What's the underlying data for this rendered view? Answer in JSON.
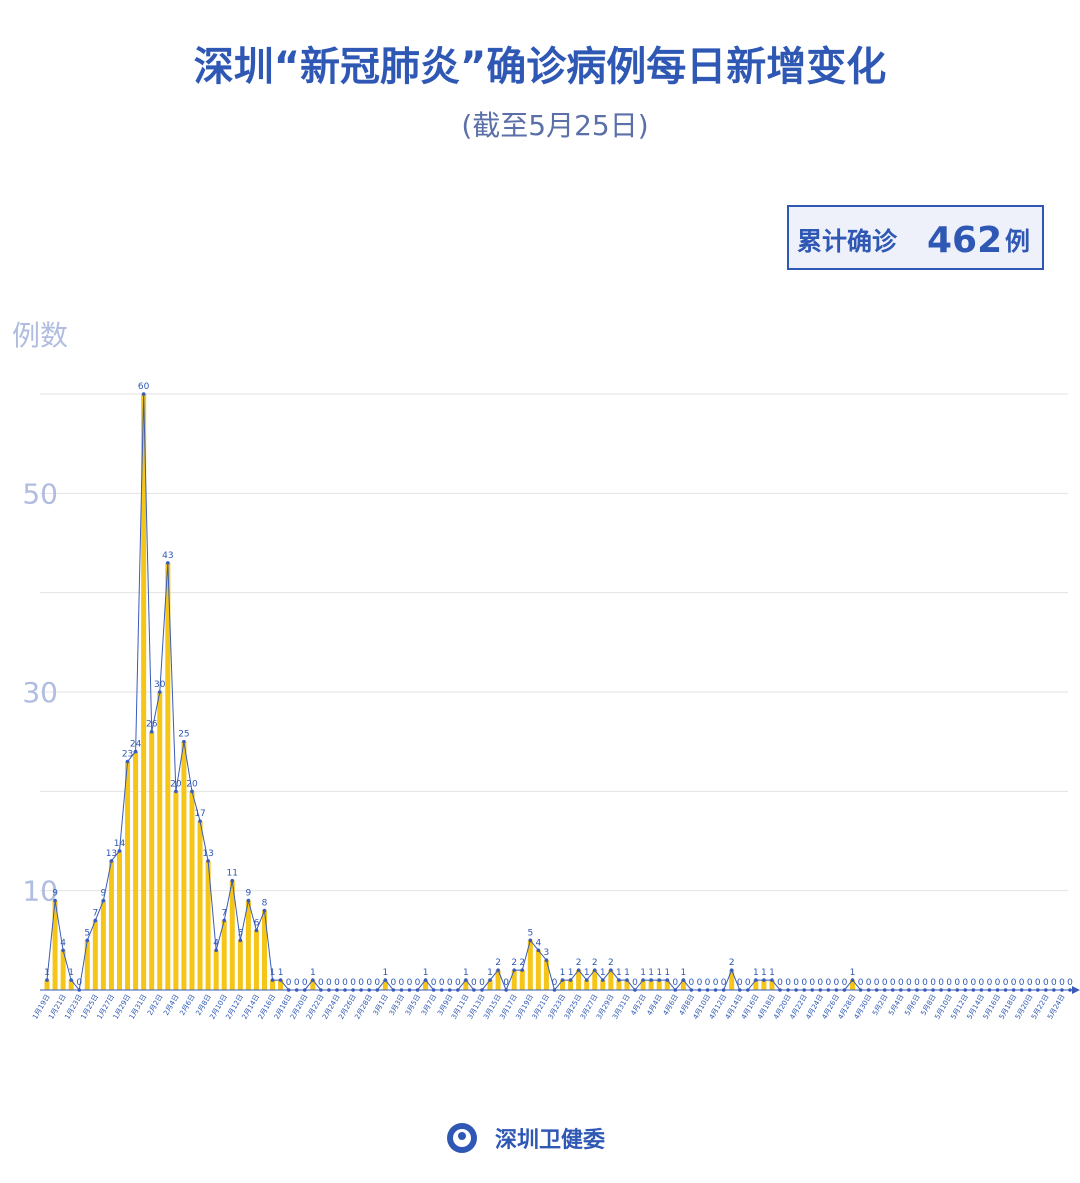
{
  "chart_data": {
    "type": "bar-line",
    "title": "深圳“新冠肺炎”确诊病例每日新增变化",
    "subtitle": "(截至5月25日)",
    "total": {
      "label": "累计确诊",
      "value": "462",
      "unit": "例"
    },
    "y_label": "例数",
    "source": "深圳卫健委",
    "categories": [
      "1月19日",
      null,
      "1月21日",
      null,
      "1月23日",
      null,
      "1月25日",
      null,
      "1月27日",
      null,
      "1月29日",
      null,
      "1月31日",
      null,
      "2月2日",
      null,
      "2月4日",
      null,
      "2月6日",
      null,
      "2月8日",
      null,
      "2月10日",
      null,
      "2月12日",
      null,
      "2月14日",
      null,
      "2月16日",
      null,
      "2月18日",
      null,
      "2月20日",
      null,
      "2月22日",
      null,
      "2月24日",
      null,
      "2月26日",
      null,
      "2月28日",
      null,
      "3月1日",
      null,
      "3月3日",
      null,
      "3月5日",
      null,
      "3月7日",
      null,
      "3月9日",
      null,
      "3月11日",
      null,
      "3月13日",
      null,
      "3月15日",
      null,
      "3月17日",
      null,
      "3月19日",
      null,
      "3月21日",
      null,
      "3月23日",
      null,
      "3月25日",
      null,
      "3月27日",
      null,
      "3月29日",
      null,
      "3月31日",
      null,
      "4月2日",
      null,
      "4月4日",
      null,
      "4月6日",
      null,
      "4月8日",
      null,
      "4月10日",
      null,
      "4月12日",
      null,
      "4月14日",
      null,
      "4月16日",
      null,
      "4月18日",
      null,
      "4月20日",
      null,
      "4月22日",
      null,
      "4月24日",
      null,
      "4月26日",
      null,
      "4月28日",
      null,
      "4月30日",
      null,
      "5月2日",
      null,
      "5月4日",
      null,
      "5月6日",
      null,
      "5月8日",
      null,
      "5月10日",
      null,
      "5月12日",
      null,
      "5月14日",
      null,
      "5月16日",
      null,
      "5月18日",
      null,
      "5月20日",
      null,
      "5月22日",
      null,
      "5月24日",
      null
    ],
    "values": [
      1,
      9,
      4,
      1,
      0,
      5,
      7,
      9,
      13,
      14,
      23,
      24,
      60,
      26,
      30,
      43,
      20,
      25,
      20,
      17,
      13,
      4,
      7,
      11,
      5,
      9,
      6,
      8,
      1,
      1,
      0,
      0,
      0,
      1,
      0,
      0,
      0,
      0,
      0,
      0,
      0,
      0,
      1,
      0,
      0,
      0,
      0,
      1,
      0,
      0,
      0,
      0,
      1,
      0,
      0,
      1,
      2,
      0,
      2,
      2,
      5,
      4,
      3,
      0,
      1,
      1,
      2,
      1,
      2,
      1,
      2,
      1,
      1,
      0,
      1,
      1,
      1,
      1,
      0,
      1,
      0,
      0,
      0,
      0,
      0,
      2,
      0,
      0,
      1,
      1,
      1,
      0,
      0,
      0,
      0,
      0,
      0,
      0,
      0,
      0,
      1,
      0,
      0,
      0,
      0,
      0,
      0,
      0,
      0,
      0,
      0,
      0,
      0,
      0,
      0,
      0,
      0,
      0,
      0,
      0,
      0,
      0,
      0,
      0,
      0,
      0,
      0,
      0
    ],
    "bar_color": "#f5c518",
    "line_color": "#3a5cb8",
    "ylim": [
      0,
      60
    ],
    "yticks": [
      10,
      30,
      50
    ],
    "minor_yticks": [
      20,
      40,
      60
    ],
    "grid": true
  }
}
